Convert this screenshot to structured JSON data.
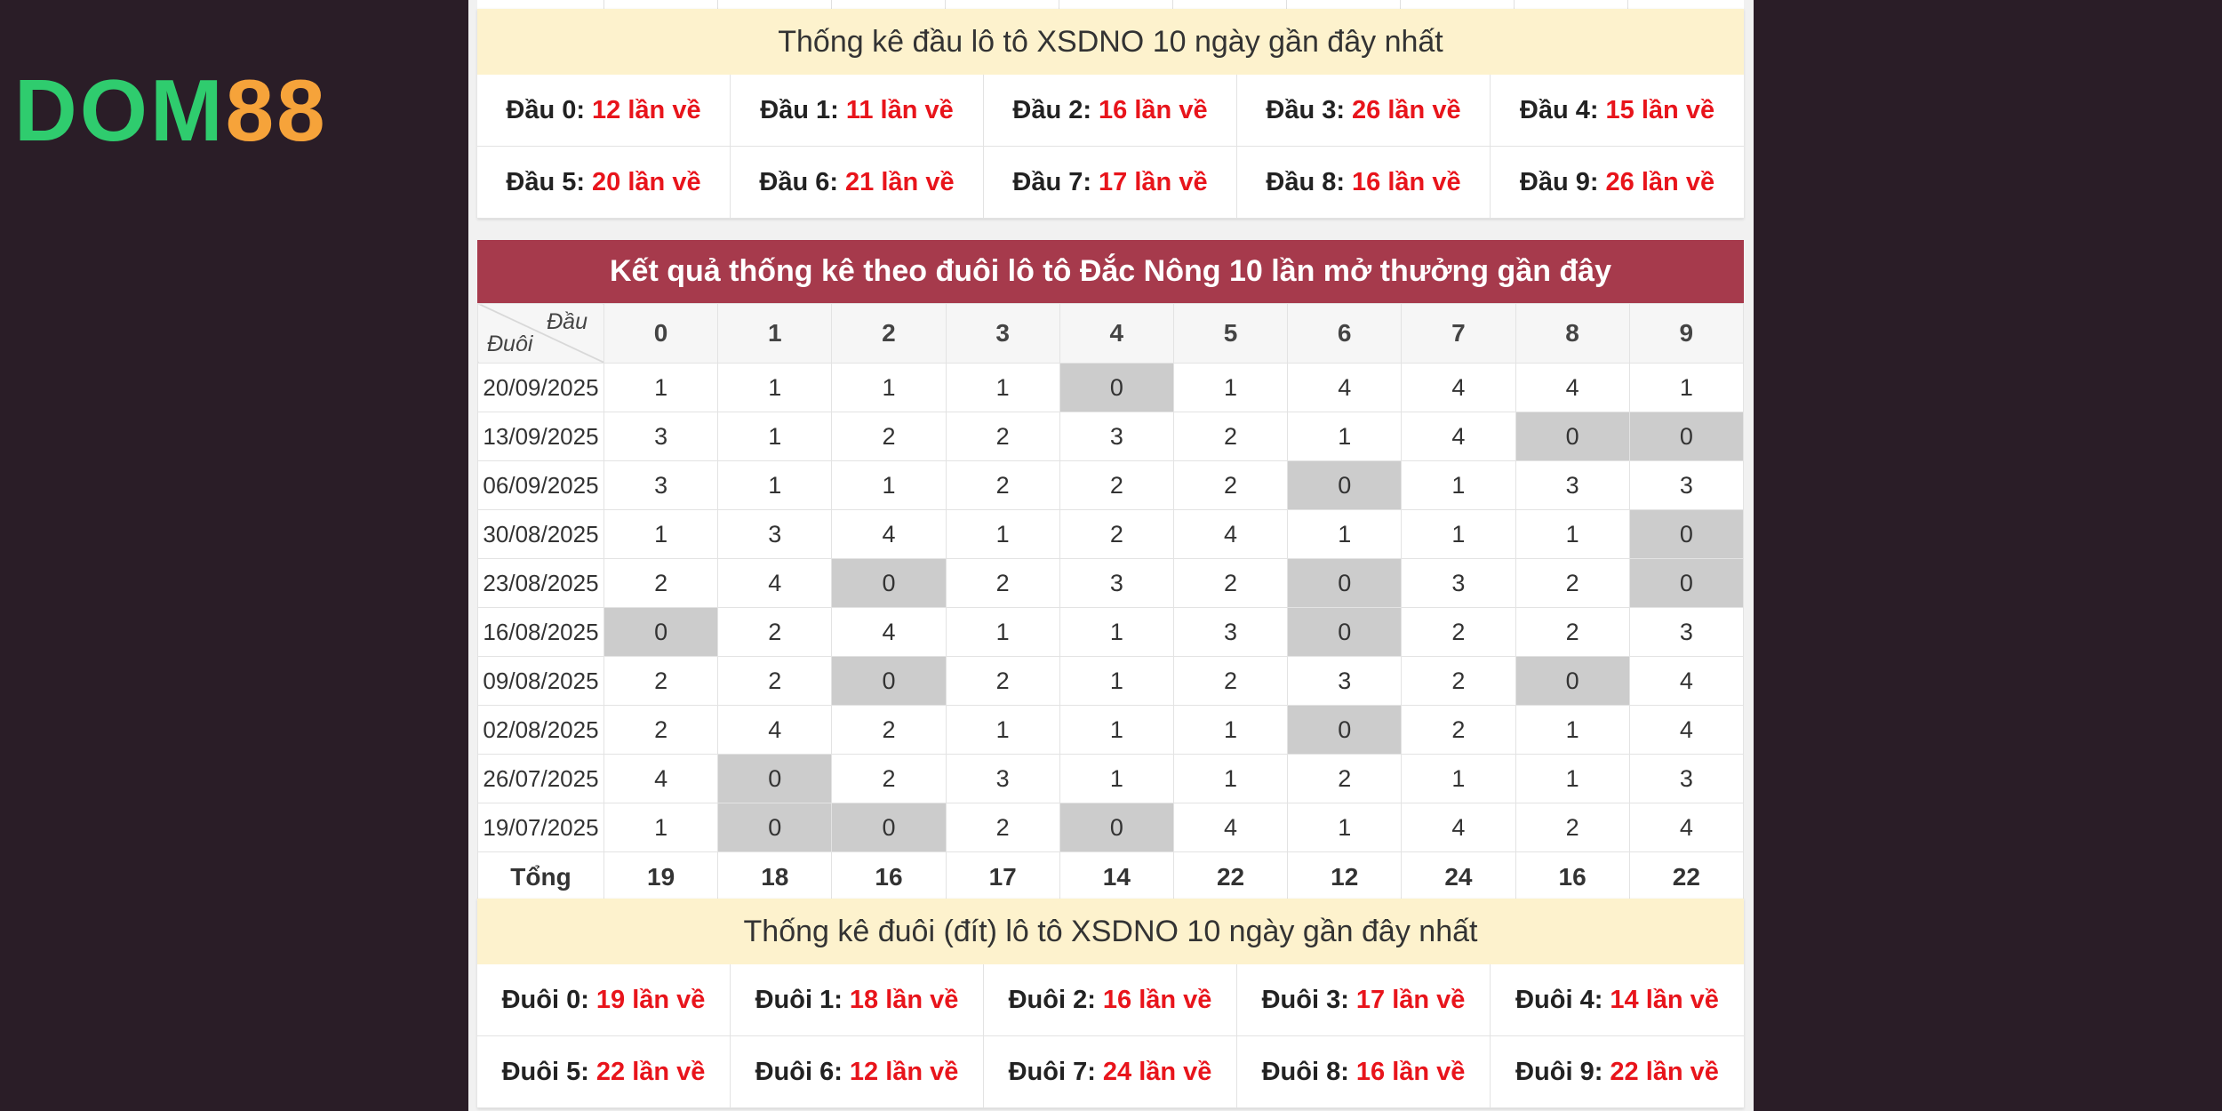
{
  "logo": {
    "part1": "DOM",
    "part2": "88"
  },
  "dau_summary": {
    "title": "Thống kê đầu lô tô XSDNO 10 ngày gần đây nhất",
    "items": [
      {
        "label": "Đầu 0:",
        "value": "12 lần về"
      },
      {
        "label": "Đầu 1:",
        "value": "11 lần về"
      },
      {
        "label": "Đầu 2:",
        "value": "16 lần về"
      },
      {
        "label": "Đầu 3:",
        "value": "26 lần về"
      },
      {
        "label": "Đầu 4:",
        "value": "15 lần về"
      },
      {
        "label": "Đầu 5:",
        "value": "20 lần về"
      },
      {
        "label": "Đầu 6:",
        "value": "21 lần về"
      },
      {
        "label": "Đầu 7:",
        "value": "17 lần về"
      },
      {
        "label": "Đầu 8:",
        "value": "16 lần về"
      },
      {
        "label": "Đầu 9:",
        "value": "26 lần về"
      }
    ]
  },
  "results": {
    "title": "Kết quả thống kê theo đuôi lô tô Đắc Nông 10 lần mở thưởng gần đây",
    "corner_top": "Đầu",
    "corner_bottom": "Đuôi",
    "columns": [
      "0",
      "1",
      "2",
      "3",
      "4",
      "5",
      "6",
      "7",
      "8",
      "9"
    ],
    "rows": [
      {
        "date": "20/09/2025",
        "values": [
          "1",
          "1",
          "1",
          "1",
          "0",
          "1",
          "4",
          "4",
          "4",
          "1"
        ]
      },
      {
        "date": "13/09/2025",
        "values": [
          "3",
          "1",
          "2",
          "2",
          "3",
          "2",
          "1",
          "4",
          "0",
          "0"
        ]
      },
      {
        "date": "06/09/2025",
        "values": [
          "3",
          "1",
          "1",
          "2",
          "2",
          "2",
          "0",
          "1",
          "3",
          "3"
        ]
      },
      {
        "date": "30/08/2025",
        "values": [
          "1",
          "3",
          "4",
          "1",
          "2",
          "4",
          "1",
          "1",
          "1",
          "0"
        ]
      },
      {
        "date": "23/08/2025",
        "values": [
          "2",
          "4",
          "0",
          "2",
          "3",
          "2",
          "0",
          "3",
          "2",
          "0"
        ]
      },
      {
        "date": "16/08/2025",
        "values": [
          "0",
          "2",
          "4",
          "1",
          "1",
          "3",
          "0",
          "2",
          "2",
          "3"
        ]
      },
      {
        "date": "09/08/2025",
        "values": [
          "2",
          "2",
          "0",
          "2",
          "1",
          "2",
          "3",
          "2",
          "0",
          "4"
        ]
      },
      {
        "date": "02/08/2025",
        "values": [
          "2",
          "4",
          "2",
          "1",
          "1",
          "1",
          "0",
          "2",
          "1",
          "4"
        ]
      },
      {
        "date": "26/07/2025",
        "values": [
          "4",
          "0",
          "2",
          "3",
          "1",
          "1",
          "2",
          "1",
          "1",
          "3"
        ]
      },
      {
        "date": "19/07/2025",
        "values": [
          "1",
          "0",
          "0",
          "2",
          "0",
          "4",
          "1",
          "4",
          "2",
          "4"
        ]
      }
    ],
    "total_label": "Tổng",
    "totals": [
      "19",
      "18",
      "16",
      "17",
      "14",
      "22",
      "12",
      "24",
      "16",
      "22"
    ],
    "zero_highlight_color": "#cccccc"
  },
  "duoi_summary": {
    "title": "Thống kê đuôi (đít) lô tô XSDNO 10 ngày gần đây nhất",
    "items": [
      {
        "label": "Đuôi 0:",
        "value": "19 lần về"
      },
      {
        "label": "Đuôi 1:",
        "value": "18 lần về"
      },
      {
        "label": "Đuôi 2:",
        "value": "16 lần về"
      },
      {
        "label": "Đuôi 3:",
        "value": "17 lần về"
      },
      {
        "label": "Đuôi 4:",
        "value": "14 lần về"
      },
      {
        "label": "Đuôi 5:",
        "value": "22 lần về"
      },
      {
        "label": "Đuôi 6:",
        "value": "12 lần về"
      },
      {
        "label": "Đuôi 7:",
        "value": "24 lần về"
      },
      {
        "label": "Đuôi 8:",
        "value": "16 lần về"
      },
      {
        "label": "Đuôi 9:",
        "value": "22 lần về"
      }
    ]
  },
  "colors": {
    "header_red": "#a63a4c",
    "summary_yellow": "#fdf2cd",
    "count_red": "#e8141b",
    "background": "#2a1d27"
  }
}
